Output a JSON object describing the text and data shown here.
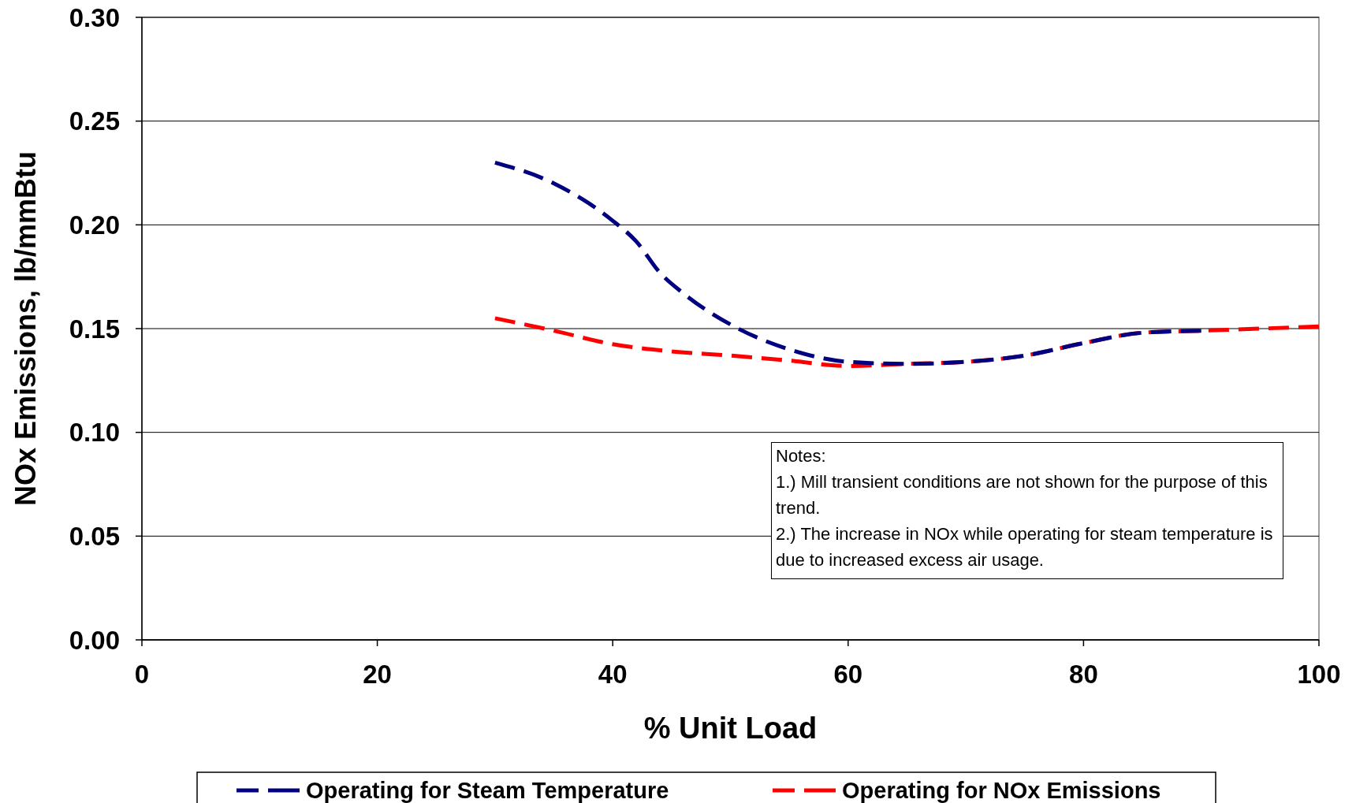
{
  "chart_data": {
    "type": "line",
    "xlabel": "% Unit Load",
    "ylabel": "NOx Emissions, lb/mmBtu",
    "xlim": [
      0,
      100
    ],
    "xticks": [
      0,
      20,
      40,
      60,
      80,
      100
    ],
    "ylim": [
      0,
      0.3
    ],
    "yticks": [
      {
        "value": 0,
        "label": "0.00"
      },
      {
        "value": 0.05,
        "label": "0.05"
      },
      {
        "value": 0.1,
        "label": "0.10"
      },
      {
        "value": 0.15,
        "label": "0.15"
      },
      {
        "value": 0.2,
        "label": "0.20"
      },
      {
        "value": 0.25,
        "label": "0.25"
      },
      {
        "value": 0.3,
        "label": "0.30"
      }
    ],
    "grid": "y",
    "legend": "bottom",
    "line_style": "dashed",
    "marker": "none",
    "series": [
      {
        "name": "Operating for Steam Temperature",
        "color": "#000080",
        "x": [
          30,
          35,
          40,
          42,
          44,
          46,
          50,
          55,
          60,
          65,
          70,
          75,
          80,
          85,
          90
        ],
        "values": [
          0.23,
          0.22,
          0.202,
          0.192,
          0.177,
          0.167,
          0.152,
          0.14,
          0.134,
          0.133,
          0.134,
          0.137,
          0.143,
          0.148,
          0.149
        ]
      },
      {
        "name": "Operating for NOx Emissions",
        "color": "#ff0000",
        "x": [
          30,
          35,
          40,
          45,
          50,
          55,
          60,
          65,
          70,
          75,
          80,
          85,
          90,
          95,
          100
        ],
        "values": [
          0.155,
          0.149,
          0.1425,
          0.139,
          0.137,
          0.1346,
          0.132,
          0.133,
          0.134,
          0.137,
          0.143,
          0.148,
          0.149,
          0.15,
          0.151
        ]
      }
    ],
    "annotations": [
      "Notes:",
      "1.) Mill transient conditions are not shown for the purpose of this trend.",
      "2.) The increase in NOx while operating for steam temperature is due to increased excess air usage."
    ]
  }
}
